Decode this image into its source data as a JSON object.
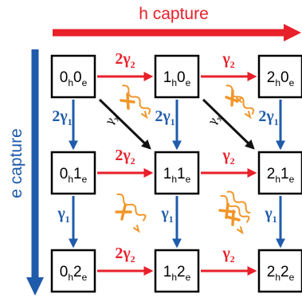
{
  "axes": {
    "hole_capture_label": "h capture",
    "electron_capture_label": "e capture",
    "hole_color": "#e8202a",
    "electron_color": "#1f5bab"
  },
  "states": [
    {
      "h": "0",
      "e": "0",
      "h_sub": "h",
      "e_sub": "e"
    },
    {
      "h": "1",
      "e": "0",
      "h_sub": "h",
      "e_sub": "e"
    },
    {
      "h": "2",
      "e": "0",
      "h_sub": "h",
      "e_sub": "e"
    },
    {
      "h": "0",
      "e": "1",
      "h_sub": "h",
      "e_sub": "e"
    },
    {
      "h": "1",
      "e": "1",
      "h_sub": "h",
      "e_sub": "e"
    },
    {
      "h": "2",
      "e": "1",
      "h_sub": "h",
      "e_sub": "e"
    },
    {
      "h": "0",
      "e": "2",
      "h_sub": "h",
      "e_sub": "e"
    },
    {
      "h": "1",
      "e": "2",
      "h_sub": "h",
      "e_sub": "e"
    },
    {
      "h": "2",
      "e": "2",
      "h_sub": "h",
      "e_sub": "e"
    }
  ],
  "rates": {
    "hole_first": {
      "prefix": "2",
      "symbol": "γ",
      "sub": "2"
    },
    "hole_second": {
      "prefix": "",
      "symbol": "γ",
      "sub": "2"
    },
    "electron_first": {
      "prefix": "2",
      "symbol": "γ",
      "sub": "1"
    },
    "electron_second": {
      "prefix": "",
      "symbol": "γ",
      "sub": "1"
    }
  },
  "recombination": {
    "symbol": "γ",
    "sub": "x",
    "arrow_color": "#111111",
    "photon_color": "#f0962a",
    "cross_color": "#f0962a"
  },
  "icons": {
    "photon": "wavy-photon-icon",
    "blocked": "cross-mark-icon"
  }
}
